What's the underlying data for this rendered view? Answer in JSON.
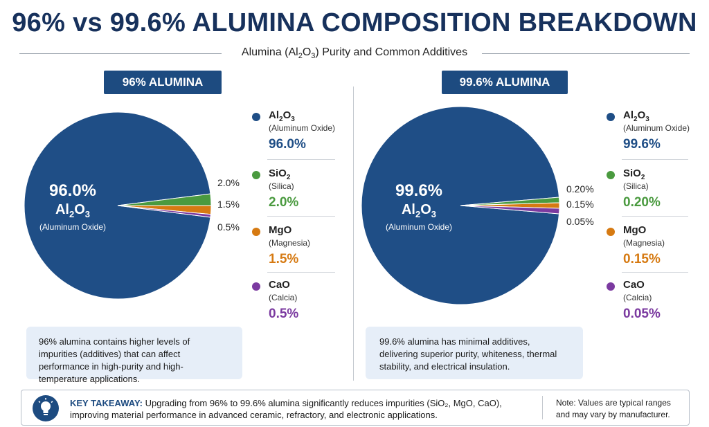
{
  "title": "96% vs 99.6% ALUMINA COMPOSITION BREAKDOWN",
  "subtitle_pre": "Alumina (Al",
  "subtitle_s1": "2",
  "subtitle_mid": "O",
  "subtitle_s2": "3",
  "subtitle_post": ") Purity and Common Additives",
  "colors": {
    "al2o3": "#1f4e86",
    "sio2": "#4a9a3f",
    "mgo": "#d67a12",
    "cao": "#7b3aa0",
    "navy": "#1d4b80"
  },
  "chart_data": [
    {
      "type": "pie",
      "title": "96% ALUMINA",
      "center": {
        "pct": "96.0%",
        "formula_main": "Al",
        "formula_s1": "2",
        "formula_o": "O",
        "formula_s2": "3",
        "name": "(Aluminum Oxide)"
      },
      "slices": [
        {
          "name": "Al2O3",
          "value": 96.0,
          "label": "96.0%",
          "color": "#1f4e86"
        },
        {
          "name": "SiO2",
          "value": 2.0,
          "label": "2.0%",
          "color": "#4a9a3f"
        },
        {
          "name": "MgO",
          "value": 1.5,
          "label": "1.5%",
          "color": "#d67a12"
        },
        {
          "name": "CaO",
          "value": 0.5,
          "label": "0.5%",
          "color": "#7b3aa0"
        }
      ],
      "legend": [
        {
          "name_a": "Al",
          "sub1": "2",
          "name_b": "O",
          "sub2": "3",
          "desc": "(Aluminum Oxide)",
          "value": "96.0%",
          "color": "#1f4e86"
        },
        {
          "name_a": "SiO",
          "sub1": "2",
          "name_b": "",
          "sub2": "",
          "desc": "(Silica)",
          "value": "2.0%",
          "color": "#4a9a3f"
        },
        {
          "name_a": "MgO",
          "sub1": "",
          "name_b": "",
          "sub2": "",
          "desc": "(Magnesia)",
          "value": "1.5%",
          "color": "#d67a12"
        },
        {
          "name_a": "CaO",
          "sub1": "",
          "name_b": "",
          "sub2": "",
          "desc": "(Calcia)",
          "value": "0.5%",
          "color": "#7b3aa0"
        }
      ],
      "note": "96% alumina contains higher levels of impurities (additives) that can affect performance in high-purity and high-temperature applications."
    },
    {
      "type": "pie",
      "title": "99.6% ALUMINA",
      "center": {
        "pct": "99.6%",
        "formula_main": "Al",
        "formula_s1": "2",
        "formula_o": "O",
        "formula_s2": "3",
        "name": "(Aluminum Oxide)"
      },
      "slices": [
        {
          "name": "Al2O3",
          "value": 99.6,
          "label": "99.6%",
          "color": "#1f4e86"
        },
        {
          "name": "SiO2",
          "value": 0.2,
          "label": "0.20%",
          "color": "#4a9a3f"
        },
        {
          "name": "MgO",
          "value": 0.15,
          "label": "0.15%",
          "color": "#d67a12"
        },
        {
          "name": "CaO",
          "value": 0.05,
          "label": "0.05%",
          "color": "#7b3aa0"
        }
      ],
      "legend": [
        {
          "name_a": "Al",
          "sub1": "2",
          "name_b": "O",
          "sub2": "3",
          "desc": "(Aluminum Oxide)",
          "value": "99.6%",
          "color": "#1f4e86"
        },
        {
          "name_a": "SiO",
          "sub1": "2",
          "name_b": "",
          "sub2": "",
          "desc": "(Silica)",
          "value": "0.20%",
          "color": "#4a9a3f"
        },
        {
          "name_a": "MgO",
          "sub1": "",
          "name_b": "",
          "sub2": "",
          "desc": "(Magnesia)",
          "value": "0.15%",
          "color": "#d67a12"
        },
        {
          "name_a": "CaO",
          "sub1": "",
          "name_b": "",
          "sub2": "",
          "desc": "(Calcia)",
          "value": "0.05%",
          "color": "#7b3aa0"
        }
      ],
      "note": "99.6% alumina has minimal additives, delivering superior purity, whiteness, thermal stability, and electrical insulation."
    }
  ],
  "takeaway": {
    "label": "KEY TAKEAWAY:",
    "text": "Upgrading from 96% to 99.6% alumina significantly reduces impurities (SiO₂, MgO, CaO), improving material performance in advanced ceramic, refractory, and electronic applications.",
    "icon": "lightbulb-icon",
    "note": "Note: Values are typical ranges and may vary by manufacturer."
  }
}
